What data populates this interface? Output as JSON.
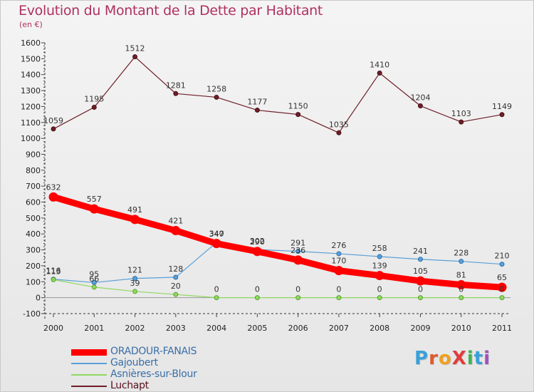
{
  "header": {
    "title": "Evolution du Montant de la Dette par Habitant",
    "subtitle": "(en €)"
  },
  "logo": {
    "text": "ProXiti",
    "letter_colors": [
      "#3aa0d8",
      "#e05a2b",
      "#f0a020",
      "#e03c3c",
      "#3fb34f",
      "#3aa0d8",
      "#a04fc0"
    ]
  },
  "chart_data": {
    "type": "line",
    "title": "Evolution du Montant de la Dette par Habitant",
    "ylabel": "(en €)",
    "xlabel": "",
    "ylim": [
      -100,
      1600
    ],
    "yticks": [
      -100,
      0,
      100,
      200,
      300,
      400,
      500,
      600,
      700,
      800,
      900,
      1000,
      1100,
      1200,
      1300,
      1400,
      1500,
      1600
    ],
    "x": [
      "2000",
      "2001",
      "2002",
      "2003",
      "2004",
      "2005",
      "2006",
      "2007",
      "2008",
      "2009",
      "2010",
      "2011"
    ],
    "grid": false,
    "legend_position": "bottom-left",
    "series": [
      {
        "name": "ORADOUR-FANAIS",
        "color": "#ff0000",
        "values": [
          632,
          557,
          491,
          421,
          340,
          290,
          236,
          170,
          139,
          105,
          81,
          65
        ]
      },
      {
        "name": "Gajoubert",
        "color": "#5aa0d8",
        "values": [
          116,
          95,
          121,
          128,
          347,
          302,
          291,
          276,
          258,
          241,
          228,
          210
        ]
      },
      {
        "name": "Asnières-sur-Blour",
        "color": "#90d860",
        "values": [
          113,
          66,
          39,
          20,
          0,
          0,
          0,
          0,
          0,
          0,
          0,
          0
        ]
      },
      {
        "name": "Luchapt",
        "color": "#6e1e28",
        "values": [
          1059,
          1195,
          1512,
          1281,
          1258,
          1177,
          1150,
          1035,
          1410,
          1204,
          1103,
          1149
        ]
      }
    ]
  }
}
